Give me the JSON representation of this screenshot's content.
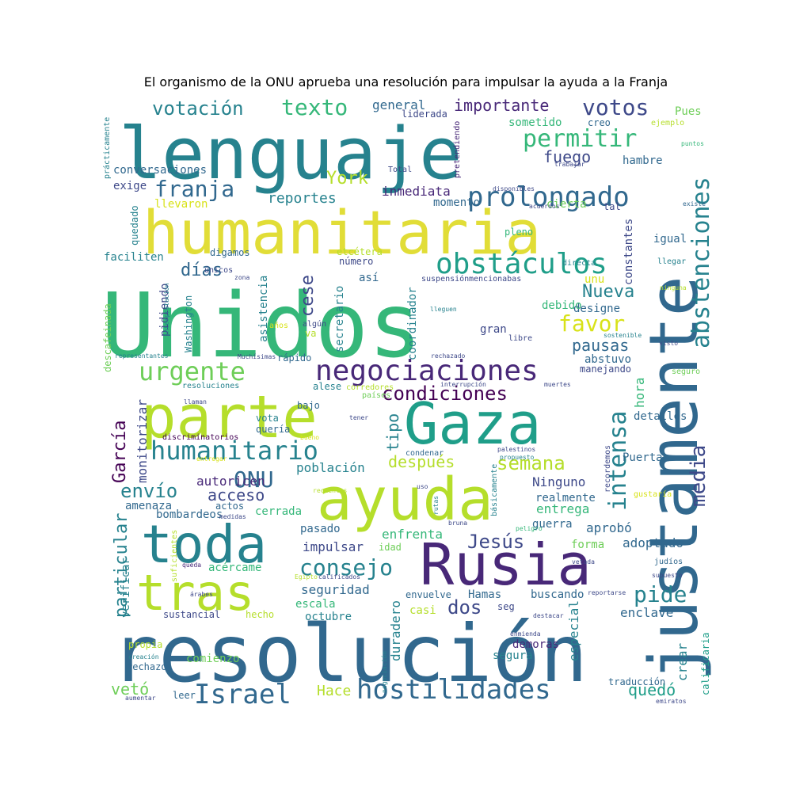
{
  "title": "El organismo de la ONU aprueba una resolución para impulsar la ayuda a la Franja",
  "palette": [
    "#440154",
    "#482878",
    "#3e4989",
    "#31688e",
    "#26828e",
    "#1f9e89",
    "#35b779",
    "#6ece58",
    "#b5de2b",
    "#fde725"
  ],
  "words": [
    {
      "text": "Unidos",
      "size": 112,
      "color": "#35b779"
    },
    {
      "text": "resolución",
      "size": 100,
      "color": "#31688e"
    },
    {
      "text": "lenguaje",
      "size": 90,
      "color": "#26828e"
    },
    {
      "text": "justamente",
      "size": 85,
      "color": "#31688e"
    },
    {
      "text": "humanitaria",
      "size": 76,
      "color": "#e1dd37"
    },
    {
      "text": "parte",
      "size": 74,
      "color": "#b5de2b"
    },
    {
      "text": "Gaza",
      "size": 72,
      "color": "#1f9e89"
    },
    {
      "text": "ayuda",
      "size": 74,
      "color": "#b5de2b"
    },
    {
      "text": "Rusia",
      "size": 72,
      "color": "#482878"
    },
    {
      "text": "toda",
      "size": 66,
      "color": "#26828e"
    },
    {
      "text": "tras",
      "size": 62,
      "color": "#b5de2b"
    },
    {
      "text": "negociaciones",
      "size": 36,
      "color": "#482878"
    },
    {
      "text": "obstáculos",
      "size": 36,
      "color": "#1f9e89"
    },
    {
      "text": "prolongado",
      "size": 34,
      "color": "#31688e"
    },
    {
      "text": "hostilidades",
      "size": 34,
      "color": "#31688e"
    },
    {
      "text": "Israel",
      "size": 34,
      "color": "#31688e"
    },
    {
      "text": "humanitario",
      "size": 32,
      "color": "#26828e"
    },
    {
      "text": "abstenciones",
      "size": 30,
      "color": "#26828e"
    },
    {
      "text": "urgente",
      "size": 32,
      "color": "#6ece58"
    },
    {
      "text": "permitir",
      "size": 30,
      "color": "#35b779"
    },
    {
      "text": "intensa",
      "size": 30,
      "color": "#26828e"
    },
    {
      "text": "consejo",
      "size": 28,
      "color": "#26828e"
    },
    {
      "text": "votos",
      "size": 28,
      "color": "#3e4989"
    },
    {
      "text": "texto",
      "size": 28,
      "color": "#35b779"
    },
    {
      "text": "franja",
      "size": 28,
      "color": "#31688e"
    },
    {
      "text": "favor",
      "size": 28,
      "color": "#d8e219"
    },
    {
      "text": "pide",
      "size": 28,
      "color": "#26828e"
    },
    {
      "text": "media",
      "size": 26,
      "color": "#3e4989"
    },
    {
      "text": "ONU",
      "size": 28,
      "color": "#31688e"
    },
    {
      "text": "condiciones",
      "size": 24,
      "color": "#440154"
    },
    {
      "text": "semana",
      "size": 24,
      "color": "#b5de2b"
    },
    {
      "text": "votación",
      "size": 24,
      "color": "#26828e"
    },
    {
      "text": "envío",
      "size": 24,
      "color": "#26828e"
    },
    {
      "text": "Jesús",
      "size": 24,
      "color": "#3e4989"
    },
    {
      "text": "dos",
      "size": 24,
      "color": "#3e4989"
    },
    {
      "text": "Nueva",
      "size": 22,
      "color": "#26828e"
    },
    {
      "text": "cese",
      "size": 22,
      "color": "#3e4989"
    },
    {
      "text": "García",
      "size": 22,
      "color": "#440154"
    },
    {
      "text": "York",
      "size": 22,
      "color": "#b5de2b"
    },
    {
      "text": "particular",
      "size": 22,
      "color": "#26828e"
    },
    {
      "text": "días",
      "size": 22,
      "color": "#31688e"
    },
    {
      "text": "importante",
      "size": 20,
      "color": "#482878"
    },
    {
      "text": "pausas",
      "size": 20,
      "color": "#31688e"
    },
    {
      "text": "fuego",
      "size": 20,
      "color": "#3e4989"
    },
    {
      "text": "vetó",
      "size": 20,
      "color": "#6ece58"
    },
    {
      "text": "quedó",
      "size": 20,
      "color": "#1f9e89"
    },
    {
      "text": "tipo",
      "size": 20,
      "color": "#26828e"
    },
    {
      "text": "después",
      "size": 20,
      "color": "#b5de2b"
    },
    {
      "text": "acceso",
      "size": 20,
      "color": "#3e4989"
    },
    {
      "text": "Hace",
      "size": 18,
      "color": "#b5de2b"
    },
    {
      "text": "reportes",
      "size": 18,
      "color": "#26828e"
    },
    {
      "text": "inmediata",
      "size": 16,
      "color": "#482878"
    },
    {
      "text": "hora",
      "size": 16,
      "color": "#35b779"
    },
    {
      "text": "crear",
      "size": 16,
      "color": "#26828e"
    },
    {
      "text": "especial",
      "size": 16,
      "color": "#26828e"
    },
    {
      "text": "duradero",
      "size": 16,
      "color": "#26828e"
    },
    {
      "text": "seguridad",
      "size": 16,
      "color": "#31688e"
    },
    {
      "text": "impulsar",
      "size": 16,
      "color": "#3e4989"
    },
    {
      "text": "monitorizar",
      "size": 16,
      "color": "#3e4989"
    },
    {
      "text": "población",
      "size": 16,
      "color": "#26828e"
    },
    {
      "text": "autoricen",
      "size": 16,
      "color": "#482878"
    },
    {
      "text": "Ninguno",
      "size": 16,
      "color": "#3e4989"
    },
    {
      "text": "entrega",
      "size": 16,
      "color": "#35b779"
    },
    {
      "text": "enfrenta",
      "size": 16,
      "color": "#35b779"
    },
    {
      "text": "aprobó",
      "size": 16,
      "color": "#31688e"
    },
    {
      "text": "adoptado",
      "size": 16,
      "color": "#31688e"
    },
    {
      "text": "enclave",
      "size": 16,
      "color": "#31688e"
    },
    {
      "text": "demoras",
      "size": 14,
      "color": "#482878"
    },
    {
      "text": "segura",
      "size": 14,
      "color": "#26828e"
    },
    {
      "text": "comienzo",
      "size": 14,
      "color": "#6ece58"
    },
    {
      "text": "octubre",
      "size": 14,
      "color": "#26828e"
    },
    {
      "text": "escala",
      "size": 14,
      "color": "#35b779"
    },
    {
      "text": "casi",
      "size": 14,
      "color": "#b5de2b"
    },
    {
      "text": "Hamas",
      "size": 14,
      "color": "#31688e"
    },
    {
      "text": "buscando",
      "size": 14,
      "color": "#31688e"
    },
    {
      "text": "guerra",
      "size": 14,
      "color": "#31688e"
    },
    {
      "text": "forma",
      "size": 14,
      "color": "#6ece58"
    },
    {
      "text": "realmente",
      "size": 14,
      "color": "#31688e"
    },
    {
      "text": "Puerta",
      "size": 14,
      "color": "#31688e"
    },
    {
      "text": "detalles",
      "size": 14,
      "color": "#31688e"
    },
    {
      "text": "designe",
      "size": 14,
      "color": "#31688e"
    },
    {
      "text": "debido",
      "size": 14,
      "color": "#35b779"
    },
    {
      "text": "gran",
      "size": 14,
      "color": "#3e4989"
    },
    {
      "text": "abstuvo",
      "size": 14,
      "color": "#31688e"
    },
    {
      "text": "manejando",
      "size": 12,
      "color": "#3e4989"
    },
    {
      "text": "coordinador",
      "size": 14,
      "color": "#26828e"
    },
    {
      "text": "secretario",
      "size": 14,
      "color": "#26828e"
    },
    {
      "text": "asistencia",
      "size": 14,
      "color": "#26828e"
    },
    {
      "text": "Washington",
      "size": 12,
      "color": "#26828e"
    },
    {
      "text": "pidiendo",
      "size": 14,
      "color": "#3e4989"
    },
    {
      "text": "faciliten",
      "size": 14,
      "color": "#26828e"
    },
    {
      "text": "exige",
      "size": 14,
      "color": "#3e4989"
    },
    {
      "text": "conversaciones",
      "size": 14,
      "color": "#31688e"
    },
    {
      "text": "general",
      "size": 16,
      "color": "#31688e"
    },
    {
      "text": "sometido",
      "size": 14,
      "color": "#35b779"
    },
    {
      "text": "hambre",
      "size": 14,
      "color": "#31688e"
    },
    {
      "text": "momento",
      "size": 14,
      "color": "#31688e"
    },
    {
      "text": "cierta",
      "size": 14,
      "color": "#6ece58"
    },
    {
      "text": "constantes",
      "size": 14,
      "color": "#3e4989"
    },
    {
      "text": "igual",
      "size": 14,
      "color": "#31688e"
    },
    {
      "text": "llegar",
      "size": 10,
      "color": "#26828e"
    },
    {
      "text": "unu",
      "size": 14,
      "color": "#d8e219"
    },
    {
      "text": "así",
      "size": 14,
      "color": "#31688e"
    },
    {
      "text": "amenaza",
      "size": 14,
      "color": "#31688e"
    },
    {
      "text": "bombardeos",
      "size": 14,
      "color": "#31688e"
    },
    {
      "text": "cerrada",
      "size": 14,
      "color": "#35b779"
    },
    {
      "text": "pasado",
      "size": 14,
      "color": "#31688e"
    },
    {
      "text": "actos",
      "size": 12,
      "color": "#31688e"
    },
    {
      "text": "idad",
      "size": 12,
      "color": "#6ece58"
    },
    {
      "text": "verificar",
      "size": 14,
      "color": "#26828e"
    },
    {
      "text": "acércame",
      "size": 14,
      "color": "#35b779"
    },
    {
      "text": "sustancial",
      "size": 12,
      "color": "#3e4989"
    },
    {
      "text": "hecho",
      "size": 12,
      "color": "#b5de2b"
    },
    {
      "text": "seg",
      "size": 12,
      "color": "#3e4989"
    },
    {
      "text": "envuelve",
      "size": 12,
      "color": "#31688e"
    },
    {
      "text": "traducción",
      "size": 12,
      "color": "#31688e"
    },
    {
      "text": "calificaria",
      "size": 12,
      "color": "#1f9e89"
    },
    {
      "text": "rechazó",
      "size": 12,
      "color": "#31688e"
    },
    {
      "text": "leer",
      "size": 12,
      "color": "#31688e"
    },
    {
      "text": "propia",
      "size": 12,
      "color": "#b5de2b"
    },
    {
      "text": "Pues",
      "size": 14,
      "color": "#6ece58"
    },
    {
      "text": "creo",
      "size": 12,
      "color": "#31688e"
    },
    {
      "text": "ejemplo",
      "size": 10,
      "color": "#b5de2b"
    },
    {
      "text": "liderada",
      "size": 12,
      "color": "#3e4989"
    },
    {
      "text": "pretendiendo",
      "size": 10,
      "color": "#482878"
    },
    {
      "text": "Total",
      "size": 10,
      "color": "#3e4989"
    },
    {
      "text": "prácticamente",
      "size": 10,
      "color": "#26828e"
    },
    {
      "text": "llevaron",
      "size": 14,
      "color": "#d8e219"
    },
    {
      "text": "quedado",
      "size": 12,
      "color": "#26828e"
    },
    {
      "text": "digamos",
      "size": 12,
      "color": "#31688e"
    },
    {
      "text": "número",
      "size": 12,
      "color": "#3e4989"
    },
    {
      "text": "etcétera",
      "size": 12,
      "color": "#b5de2b"
    },
    {
      "text": "directa",
      "size": 10,
      "color": "#26828e"
    },
    {
      "text": "pleno",
      "size": 12,
      "color": "#35b779"
    },
    {
      "text": "tal",
      "size": 12,
      "color": "#3e4989"
    },
    {
      "text": "existe",
      "size": 8,
      "color": "#31688e"
    },
    {
      "text": "acuerdos",
      "size": 8,
      "color": "#3e4989"
    },
    {
      "text": "disponibles",
      "size": 8,
      "color": "#3e4989"
    },
    {
      "text": "trabajar",
      "size": 8,
      "color": "#3e4989"
    },
    {
      "text": "puntos",
      "size": 8,
      "color": "#35b779"
    },
    {
      "text": "únicos",
      "size": 10,
      "color": "#3e4989"
    },
    {
      "text": "zona",
      "size": 8,
      "color": "#3e4989"
    },
    {
      "text": "interpretación",
      "size": 8,
      "color": "#26828e"
    },
    {
      "text": "descafeinada",
      "size": 12,
      "color": "#6ece58"
    },
    {
      "text": "suspensión",
      "size": 10,
      "color": "#3e4989"
    },
    {
      "text": "mencionabas",
      "size": 10,
      "color": "#3e4989"
    },
    {
      "text": "ninguna",
      "size": 8,
      "color": "#b5de2b"
    },
    {
      "text": "lleguen",
      "size": 8,
      "color": "#26828e"
    },
    {
      "text": "algún",
      "size": 10,
      "color": "#3e4989"
    },
    {
      "text": "años",
      "size": 10,
      "color": "#d8e219"
    },
    {
      "text": "va",
      "size": 12,
      "color": "#b5de2b"
    },
    {
      "text": "libre",
      "size": 10,
      "color": "#3e4989"
    },
    {
      "text": "sostenible",
      "size": 8,
      "color": "#26828e"
    },
    {
      "text": "visto",
      "size": 8,
      "color": "#3e4989"
    },
    {
      "text": "seguro",
      "size": 10,
      "color": "#6ece58"
    },
    {
      "text": "representantes",
      "size": 8,
      "color": "#26828e"
    },
    {
      "text": "Muchísimas",
      "size": 8,
      "color": "#3e4989"
    },
    {
      "text": "rápido",
      "size": 12,
      "color": "#31688e"
    },
    {
      "text": "rechazado",
      "size": 8,
      "color": "#3e4989"
    },
    {
      "text": "muertes",
      "size": 8,
      "color": "#3e4989"
    },
    {
      "text": "interrupción",
      "size": 8,
      "color": "#3e4989"
    },
    {
      "text": "resoluciones",
      "size": 10,
      "color": "#26828e"
    },
    {
      "text": "alese",
      "size": 12,
      "color": "#26828e"
    },
    {
      "text": "corredores",
      "size": 10,
      "color": "#b5de2b"
    },
    {
      "text": "países",
      "size": 10,
      "color": "#6ece58"
    },
    {
      "text": "llaman",
      "size": 8,
      "color": "#3e4989"
    },
    {
      "text": "bajo",
      "size": 12,
      "color": "#31688e"
    },
    {
      "text": "tener",
      "size": 8,
      "color": "#3e4989"
    },
    {
      "text": "vota",
      "size": 12,
      "color": "#26828e"
    },
    {
      "text": "quería",
      "size": 12,
      "color": "#31688e"
    },
    {
      "text": "discriminatorios",
      "size": 10,
      "color": "#440154"
    },
    {
      "text": "bueno",
      "size": 8,
      "color": "#d8e219"
    },
    {
      "text": "palestinos",
      "size": 8,
      "color": "#3e4989"
    },
    {
      "text": "condenar",
      "size": 10,
      "color": "#31688e"
    },
    {
      "text": "recordemos",
      "size": 10,
      "color": "#3e4989"
    },
    {
      "text": "propuesto",
      "size": 8,
      "color": "#26828e"
    },
    {
      "text": "gustaría",
      "size": 10,
      "color": "#d8e219"
    },
    {
      "text": "básicamente",
      "size": 10,
      "color": "#26828e"
    },
    {
      "text": "entregar",
      "size": 8,
      "color": "#d8e219"
    },
    {
      "text": "uso",
      "size": 8,
      "color": "#3e4989"
    },
    {
      "text": "recientes",
      "size": 8,
      "color": "#b5de2b"
    },
    {
      "text": "rutas",
      "size": 8,
      "color": "#26828e"
    },
    {
      "text": "medidas",
      "size": 8,
      "color": "#3e4989"
    },
    {
      "text": "suficientes",
      "size": 10,
      "color": "#b5de2b"
    },
    {
      "text": "bruna",
      "size": 8,
      "color": "#3e4989"
    },
    {
      "text": "peligro",
      "size": 8,
      "color": "#35b779"
    },
    {
      "text": "vetada",
      "size": 8,
      "color": "#3e4989"
    },
    {
      "text": "judíos",
      "size": 10,
      "color": "#31688e"
    },
    {
      "text": "queda",
      "size": 8,
      "color": "#482878"
    },
    {
      "text": "Egipto",
      "size": 8,
      "color": "#b5de2b"
    },
    {
      "text": "calificados",
      "size": 8,
      "color": "#3e4989"
    },
    {
      "text": "supuesto",
      "size": 8,
      "color": "#3e4989"
    },
    {
      "text": "reportarse",
      "size": 8,
      "color": "#3e4989"
    },
    {
      "text": "árabes",
      "size": 8,
      "color": "#3e4989"
    },
    {
      "text": "destacar",
      "size": 8,
      "color": "#3e4989"
    },
    {
      "text": "negociación",
      "size": 8,
      "color": "#26828e"
    },
    {
      "text": "enmienda",
      "size": 8,
      "color": "#3e4989"
    },
    {
      "text": "creación",
      "size": 8,
      "color": "#26828e"
    },
    {
      "text": "aumentar",
      "size": 8,
      "color": "#3e4989"
    },
    {
      "text": "emiratos",
      "size": 8,
      "color": "#3e4989"
    }
  ]
}
